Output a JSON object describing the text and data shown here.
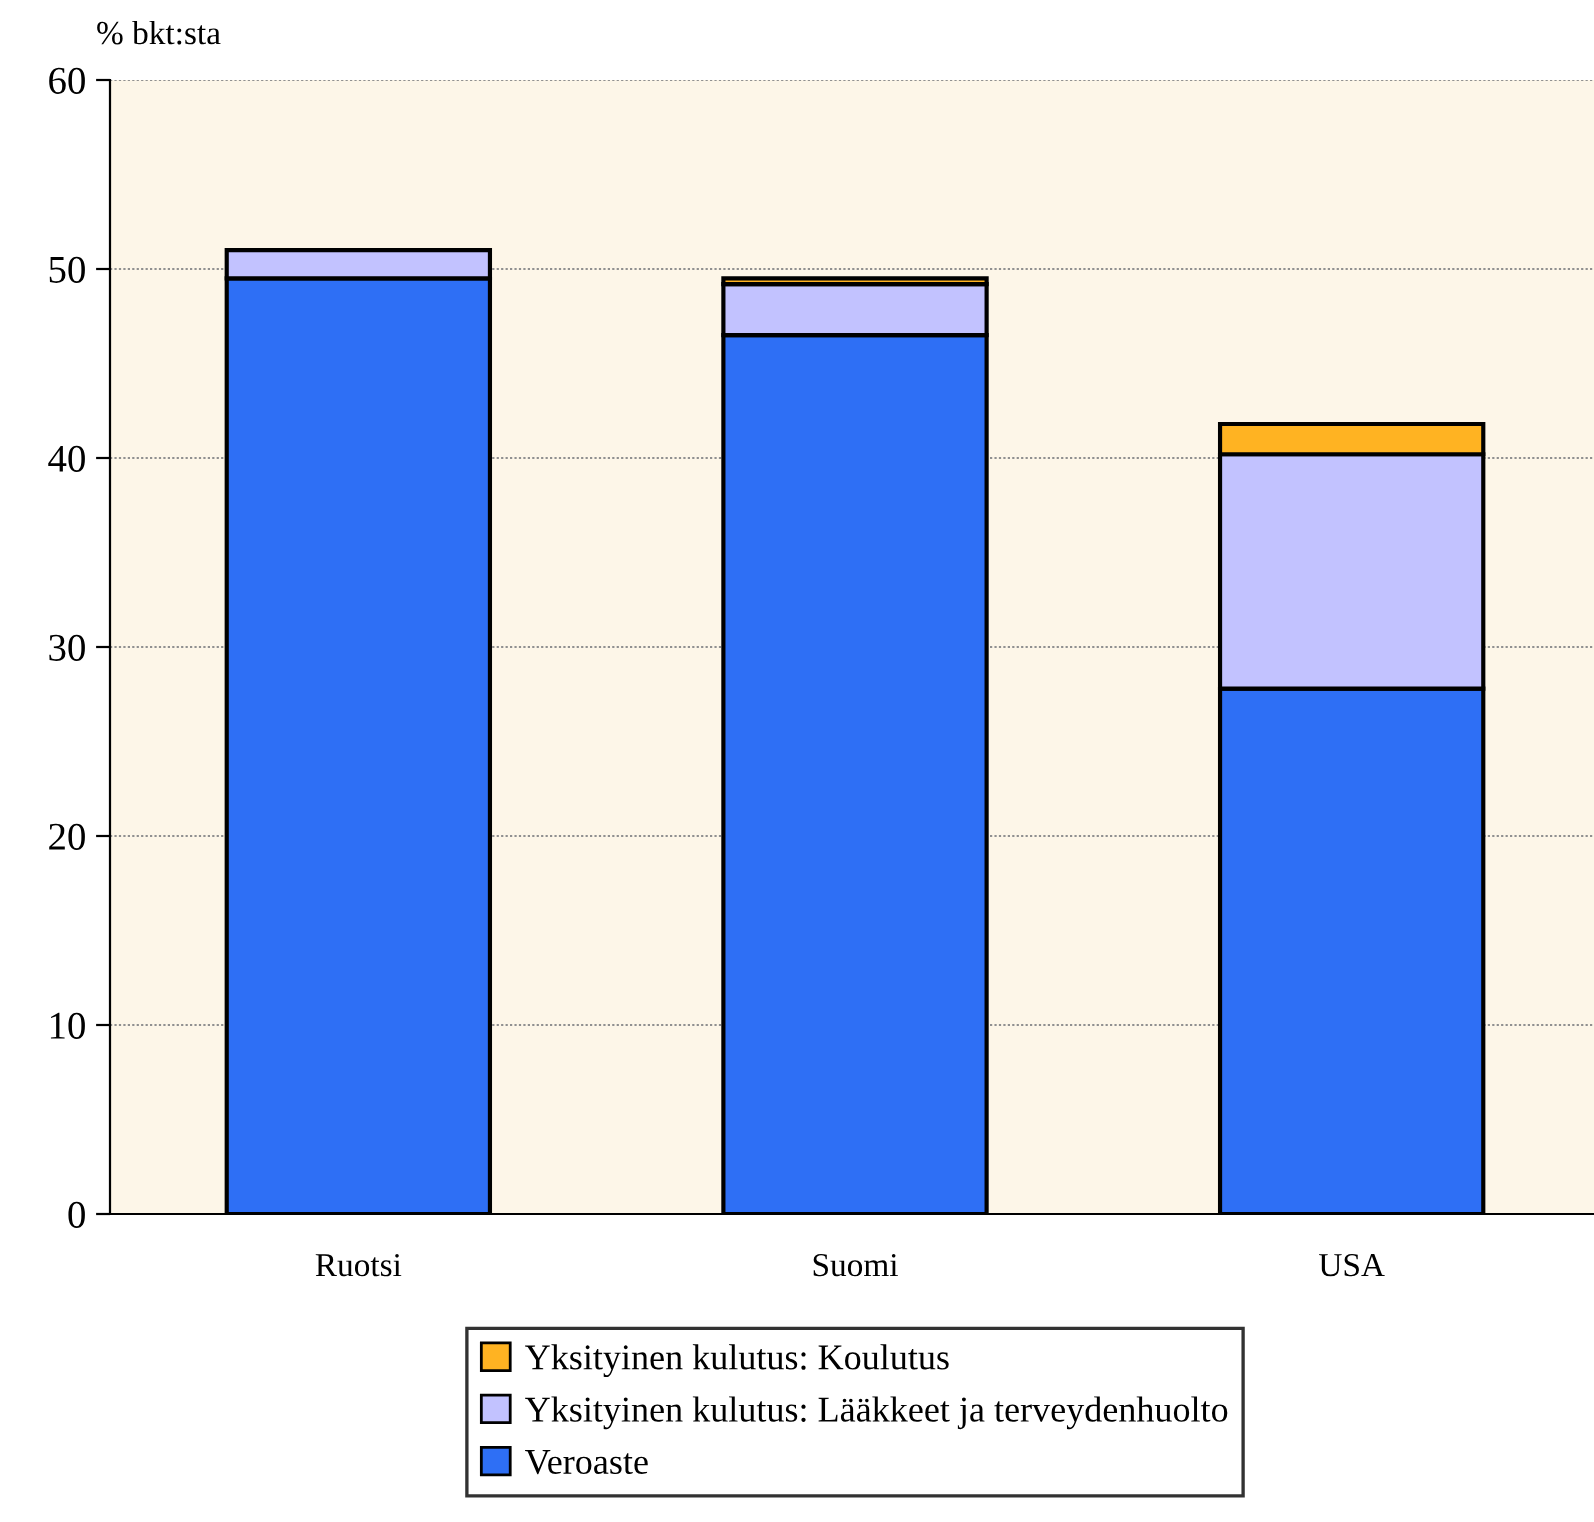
{
  "chart_data": {
    "type": "bar",
    "stacked": true,
    "ylabel": "% bkt:sta",
    "categories": [
      "Ruotsi",
      "Suomi",
      "USA"
    ],
    "series": [
      {
        "name": "Veroaste",
        "color": "#2e6ff5",
        "values": [
          49.5,
          46.5,
          27.8
        ]
      },
      {
        "name": "Yksityinen kulutus: Lääkkeet ja terveydenhuolto",
        "color": "#c2c2ff",
        "values": [
          1.5,
          2.7,
          12.4
        ]
      },
      {
        "name": "Yksityinen kulutus: Koulutus",
        "color": "#ffb322",
        "values": [
          null,
          0.3,
          1.6
        ]
      }
    ],
    "ylim": [
      0,
      60
    ],
    "yticks": [
      0,
      10,
      20,
      30,
      40,
      50,
      60
    ],
    "grid": "y",
    "legend": "bottom"
  }
}
